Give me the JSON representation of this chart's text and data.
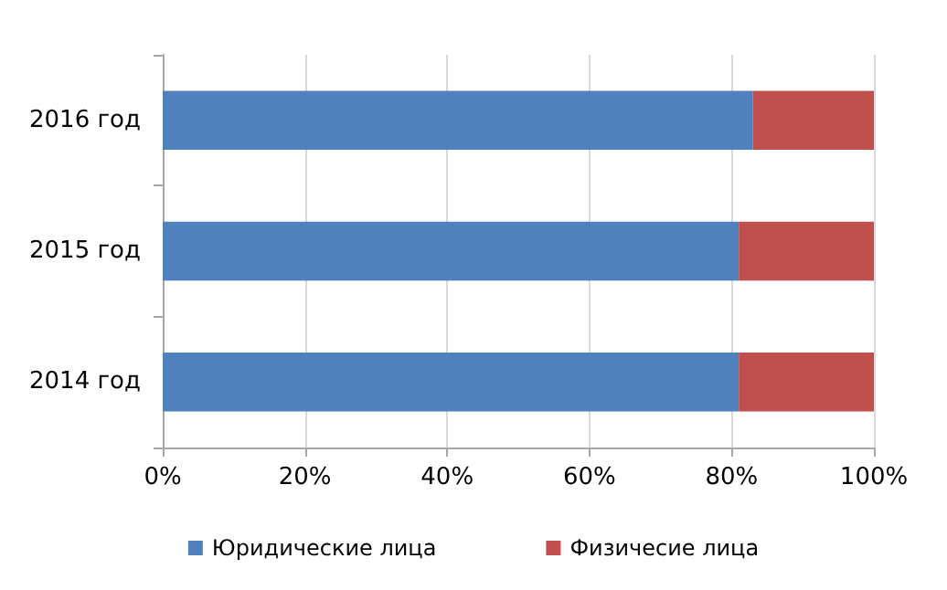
{
  "chart_data": {
    "type": "bar",
    "orientation": "horizontal",
    "stacked": true,
    "categories": [
      "2016 год",
      "2015 год",
      "2014 год"
    ],
    "series": [
      {
        "name": "Юридические лица",
        "color": "#4f81bd",
        "values": [
          83,
          81,
          81
        ]
      },
      {
        "name": "Физичесие лица",
        "color": "#c0504d",
        "values": [
          17,
          19,
          19
        ]
      }
    ],
    "xlim": [
      0,
      100
    ],
    "xticks": [
      {
        "value": 0,
        "label": "0%"
      },
      {
        "value": 20,
        "label": "20%"
      },
      {
        "value": 40,
        "label": "40%"
      },
      {
        "value": 60,
        "label": "60%"
      },
      {
        "value": 80,
        "label": "80%"
      },
      {
        "value": 100,
        "label": "100%"
      }
    ],
    "grid": "x",
    "legend": "bottom"
  }
}
